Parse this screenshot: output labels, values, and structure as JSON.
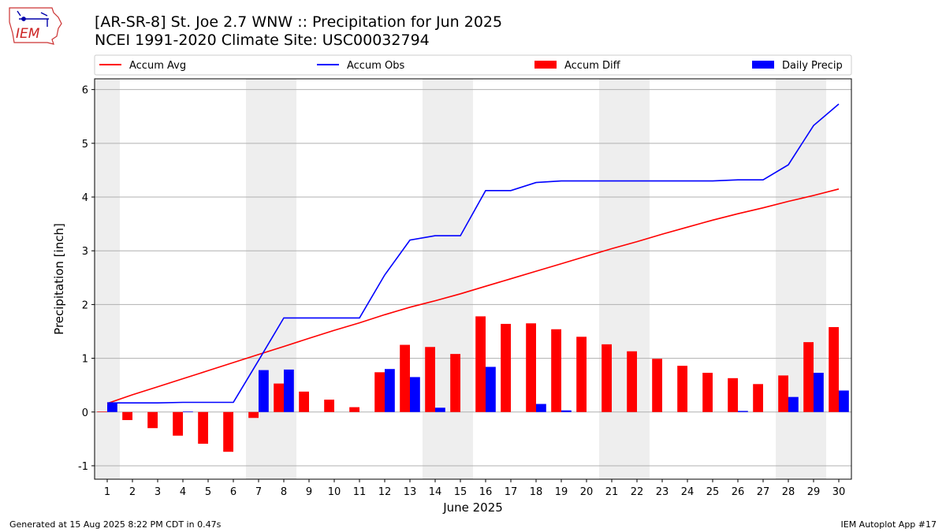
{
  "header": {
    "title": "[AR-SR-8] St. Joe 2.7 WNW :: Precipitation for Jun 2025",
    "subtitle": "NCEI 1991-2020 Climate Site: USC00032794",
    "logo_text": "IEM"
  },
  "footer": {
    "generated": "Generated at 15 Aug 2025 8:22 PM CDT in 0.47s",
    "app": "IEM Autoplot App #17"
  },
  "colors": {
    "avg": "#ff0000",
    "obs": "#0000ff",
    "diff": "#ff0000",
    "daily": "#0000ff",
    "weekend_band": "#eeeeee",
    "grid": "#b0b0b0"
  },
  "chart_data": {
    "type": "bar",
    "xlabel": "June 2025",
    "ylabel": "Precipitation [inch]",
    "ylim": [
      -1.25,
      6.2
    ],
    "yticks": [
      -1,
      0,
      1,
      2,
      3,
      4,
      5,
      6
    ],
    "xlim": [
      0.5,
      30.5
    ],
    "grid": "horizontal",
    "legend_position": "top",
    "weekend_days": [
      1,
      7,
      8,
      14,
      15,
      21,
      22,
      28,
      29
    ],
    "legend": [
      {
        "label": "Accum Avg",
        "kind": "line",
        "color": "#ff0000"
      },
      {
        "label": "Accum Obs",
        "kind": "line",
        "color": "#0000ff"
      },
      {
        "label": "Accum Diff",
        "kind": "bar",
        "color": "#ff0000"
      },
      {
        "label": "Daily Precip",
        "kind": "bar",
        "color": "#0000ff"
      }
    ],
    "days": [
      1,
      2,
      3,
      4,
      5,
      6,
      7,
      8,
      9,
      10,
      11,
      12,
      13,
      14,
      15,
      16,
      17,
      18,
      19,
      20,
      21,
      22,
      23,
      24,
      25,
      26,
      27,
      28,
      29,
      30
    ],
    "series": [
      {
        "name": "Accum Avg",
        "type": "line",
        "values": [
          0.16,
          0.32,
          0.47,
          0.62,
          0.77,
          0.92,
          1.07,
          1.22,
          1.37,
          1.52,
          1.66,
          1.81,
          1.95,
          2.07,
          2.2,
          2.34,
          2.48,
          2.62,
          2.76,
          2.9,
          3.04,
          3.17,
          3.31,
          3.44,
          3.57,
          3.69,
          3.8,
          3.92,
          4.03,
          4.15
        ]
      },
      {
        "name": "Accum Obs",
        "type": "line",
        "values": [
          0.17,
          0.17,
          0.17,
          0.18,
          0.18,
          0.18,
          0.96,
          1.75,
          1.75,
          1.75,
          1.75,
          2.55,
          3.2,
          3.28,
          3.28,
          4.12,
          4.12,
          4.27,
          4.3,
          4.3,
          4.3,
          4.3,
          4.3,
          4.3,
          4.3,
          4.32,
          4.32,
          4.6,
          5.33,
          5.73
        ]
      },
      {
        "name": "Accum Diff",
        "type": "bar",
        "values": [
          0.01,
          -0.15,
          -0.3,
          -0.44,
          -0.59,
          -0.74,
          -0.11,
          0.53,
          0.38,
          0.23,
          0.09,
          0.74,
          1.25,
          1.21,
          1.08,
          1.78,
          1.64,
          1.65,
          1.54,
          1.4,
          1.26,
          1.13,
          0.99,
          0.86,
          0.73,
          0.63,
          0.52,
          0.68,
          1.3,
          1.58
        ]
      },
      {
        "name": "Daily Precip",
        "type": "bar",
        "values": [
          0.17,
          0,
          0,
          0.01,
          0,
          0,
          0.78,
          0.79,
          0,
          0,
          0,
          0.8,
          0.65,
          0.08,
          0,
          0.84,
          0,
          0.15,
          0.03,
          0,
          0,
          0,
          0,
          0,
          0,
          0.02,
          0,
          0.28,
          0.73,
          0.4
        ]
      }
    ]
  }
}
